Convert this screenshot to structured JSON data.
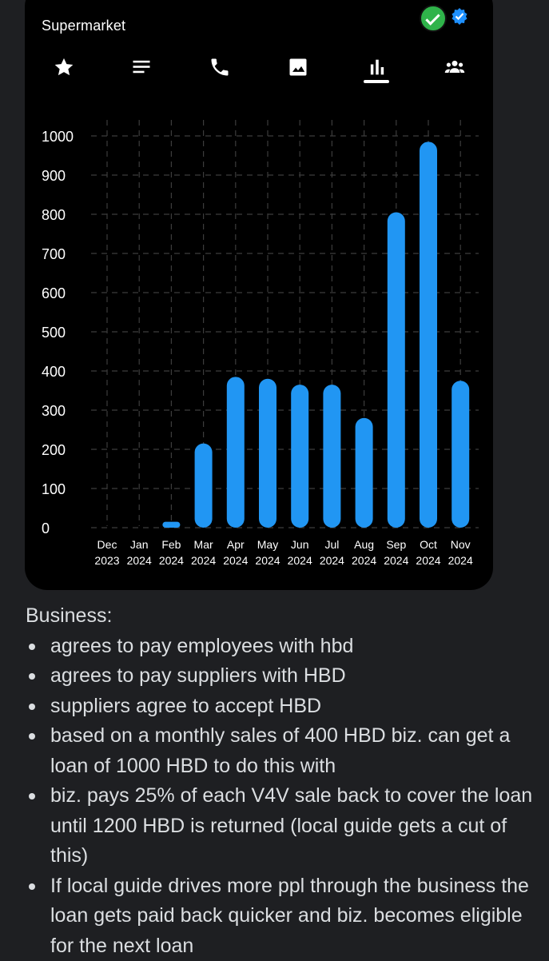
{
  "app": {
    "title": "Supermarket"
  },
  "status_icons": [
    {
      "name": "green-check-icon",
      "color": "#2fb34a"
    },
    {
      "name": "blue-badge-icon",
      "color": "#1e90ff"
    }
  ],
  "tabs": [
    {
      "name": "tab-favorites",
      "icon": "star-icon"
    },
    {
      "name": "tab-details",
      "icon": "list-icon"
    },
    {
      "name": "tab-contact",
      "icon": "phone-icon"
    },
    {
      "name": "tab-photos",
      "icon": "image-icon"
    },
    {
      "name": "tab-stats",
      "icon": "bar-chart-icon",
      "selected": true
    },
    {
      "name": "tab-people",
      "icon": "group-icon"
    }
  ],
  "chart_data": {
    "type": "bar",
    "categories": [
      "Dec 2023",
      "Jan 2024",
      "Feb 2024",
      "Mar 2024",
      "Apr 2024",
      "May 2024",
      "Jun 2024",
      "Jul 2024",
      "Aug 2024",
      "Sep 2024",
      "Oct 2024",
      "Nov 2024"
    ],
    "category_lines": [
      [
        "Dec",
        "2023"
      ],
      [
        "Jan",
        "2024"
      ],
      [
        "Feb",
        "2024"
      ],
      [
        "Mar",
        "2024"
      ],
      [
        "Apr",
        "2024"
      ],
      [
        "May",
        "2024"
      ],
      [
        "Jun",
        "2024"
      ],
      [
        "Jul",
        "2024"
      ],
      [
        "Aug",
        "2024"
      ],
      [
        "Sep",
        "2024"
      ],
      [
        "Oct",
        "2024"
      ],
      [
        "Nov",
        "2024"
      ]
    ],
    "values": [
      0,
      0,
      15,
      215,
      385,
      380,
      365,
      365,
      280,
      805,
      985,
      375
    ],
    "yticks": [
      "0",
      "100",
      "200",
      "300",
      "400",
      "500",
      "600",
      "700",
      "800",
      "900",
      "1000"
    ],
    "ylim": [
      0,
      1000
    ],
    "grid": true,
    "bar_color": "#2196f3",
    "grid_color": "#3c3c3c"
  },
  "notes": {
    "heading": "Business:",
    "items": [
      "agrees to pay employees with hbd",
      "agrees to pay suppliers with HBD",
      "suppliers agree to accept HBD",
      "based on a monthly sales of 400 HBD biz. can get a loan of 1000 HBD to do this with",
      "biz. pays 25% of each V4V sale back to cover the loan until 1200 HBD is returned (local guide gets a cut of this)",
      "If local guide drives more ppl through the business the loan gets paid back quicker and biz. becomes eligible for the next loan"
    ]
  }
}
